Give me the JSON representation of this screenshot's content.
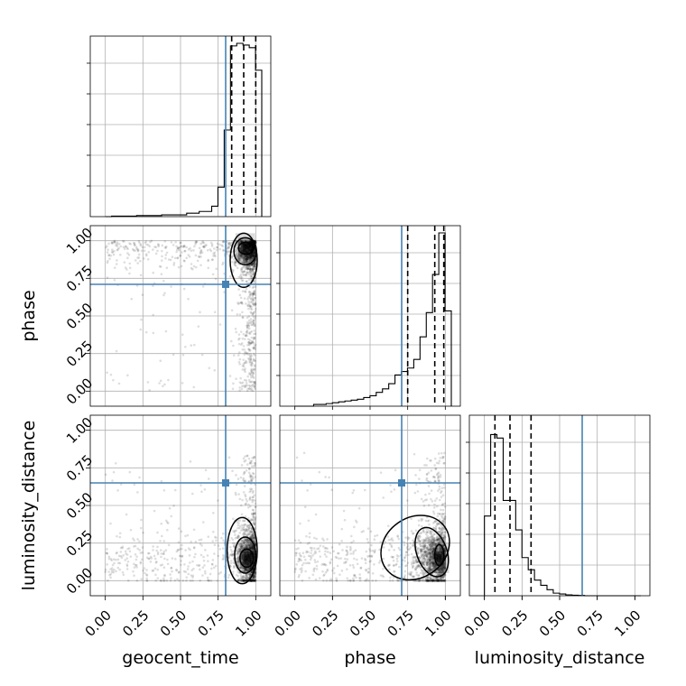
{
  "chart_data": {
    "type": "corner",
    "parameters": [
      "geocent_time",
      "phase",
      "luminosity_distance"
    ],
    "tick_labels": [
      "0.00",
      "0.25",
      "0.50",
      "0.75",
      "1.00"
    ],
    "range": [
      -0.1,
      1.1
    ],
    "truths": {
      "geocent_time": 0.8,
      "phase": 0.71,
      "luminosity_distance": 0.65
    },
    "truth_color": "#4682b4",
    "quantiles": {
      "geocent_time": [
        0.84,
        0.92,
        1.0
      ],
      "phase": [
        0.75,
        0.93,
        0.99
      ],
      "luminosity_distance": [
        0.07,
        0.17,
        0.31
      ]
    },
    "histograms": {
      "geocent_time": {
        "x_range": [
          0.0,
          1.04
        ],
        "relative_heights": [
          0,
          0.003,
          0.003,
          0.003,
          0.003,
          0.006,
          0.006,
          0.006,
          0.006,
          0.01,
          0.01,
          0.01,
          0.01,
          0.02,
          0.02,
          0.03,
          0.03,
          0.06,
          0.17,
          0.5,
          0.985,
          1.0,
          0.99,
          0.975,
          0.845
        ]
      },
      "phase": {
        "x_range": [
          0.0,
          1.04
        ],
        "relative_heights": [
          0,
          0,
          0,
          0.01,
          0.01,
          0.015,
          0.02,
          0.025,
          0.03,
          0.035,
          0.04,
          0.05,
          0.06,
          0.08,
          0.1,
          0.13,
          0.18,
          0.2,
          0.22,
          0.27,
          0.4,
          0.54,
          0.76,
          1.0,
          0.55
        ]
      },
      "luminosity_distance": {
        "x_range": [
          0.0,
          1.04
        ],
        "relative_heights": [
          0.46,
          0.93,
          0.91,
          0.55,
          0.55,
          0.38,
          0.22,
          0.15,
          0.09,
          0.06,
          0.035,
          0.015,
          0.01,
          0.005,
          0.003,
          0.002,
          0,
          0,
          0,
          0,
          0,
          0,
          0,
          0,
          0
        ]
      }
    },
    "pair_densities": [
      {
        "x": "geocent_time",
        "y": "phase",
        "peak": [
          0.93,
          0.95
        ]
      },
      {
        "x": "geocent_time",
        "y": "luminosity_distance",
        "peak": [
          0.94,
          0.15
        ]
      },
      {
        "x": "phase",
        "y": "luminosity_distance",
        "peak": [
          0.96,
          0.15
        ]
      }
    ]
  }
}
